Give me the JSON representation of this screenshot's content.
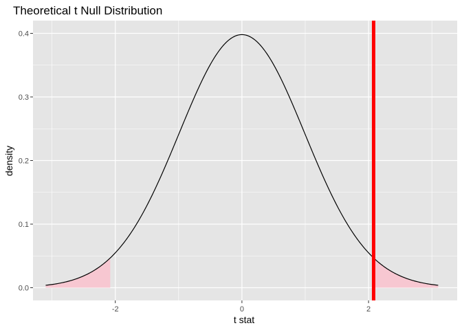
{
  "chart_data": {
    "type": "line",
    "title": "Theoretical t Null Distribution",
    "xlabel": "t stat",
    "ylabel": "density",
    "xlim": [
      -3.3,
      3.4
    ],
    "ylim": [
      -0.02,
      0.42
    ],
    "x_ticks": [
      -2,
      0,
      2
    ],
    "x_tick_labels": [
      "-2",
      "0",
      "2"
    ],
    "y_ticks": [
      0.0,
      0.1,
      0.2,
      0.3,
      0.4
    ],
    "y_tick_labels": [
      "0.0",
      "0.1",
      "0.2",
      "0.3",
      "0.4"
    ],
    "grid": true,
    "legend": "none",
    "curve": {
      "x_range": [
        -3.1,
        3.1
      ],
      "distribution": "t",
      "peak": 0.398
    },
    "observed_stat": 2.08,
    "shaded_tails": [
      [
        -3.1,
        -2.08
      ],
      [
        2.08,
        3.1
      ]
    ],
    "colors": {
      "panel": "#e5e5e5",
      "gridline": "#ffffff",
      "curve": "#000000",
      "shade": "#f7c7d1",
      "observed_line": "#ff0000"
    }
  }
}
